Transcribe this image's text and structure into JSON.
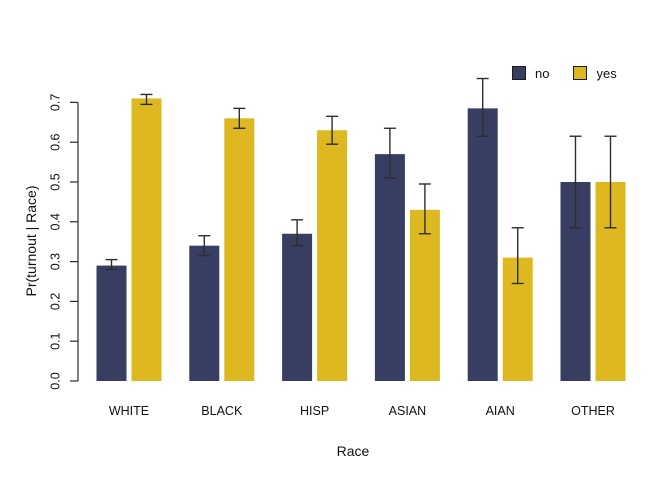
{
  "chart_data": {
    "type": "bar",
    "title": "",
    "xlabel": "Race",
    "ylabel": "Pr(turnout | Race)",
    "categories": [
      "WHITE",
      "BLACK",
      "HISP",
      "ASIAN",
      "AIAN",
      "OTHER"
    ],
    "series": [
      {
        "name": "no",
        "color": "#373E62",
        "values": [
          0.29,
          0.34,
          0.37,
          0.57,
          0.685,
          0.5
        ],
        "ci_low": [
          0.28,
          0.315,
          0.34,
          0.51,
          0.615,
          0.385
        ],
        "ci_high": [
          0.305,
          0.365,
          0.405,
          0.635,
          0.76,
          0.615
        ]
      },
      {
        "name": "yes",
        "color": "#DEB821",
        "values": [
          0.71,
          0.66,
          0.63,
          0.43,
          0.31,
          0.5
        ],
        "ci_low": [
          0.695,
          0.635,
          0.595,
          0.37,
          0.245,
          0.385
        ],
        "ci_high": [
          0.72,
          0.685,
          0.665,
          0.495,
          0.385,
          0.615
        ]
      }
    ],
    "ylim": [
      0,
      0.7
    ],
    "yticks": [
      "0.0",
      "0.1",
      "0.2",
      "0.3",
      "0.4",
      "0.5",
      "0.6",
      "0.7"
    ],
    "grid": false,
    "legend_position": "top-right",
    "background_color": "#ffffff",
    "axis_color": "#2b2b2b",
    "error_bar_color": "#2e2e2e"
  }
}
